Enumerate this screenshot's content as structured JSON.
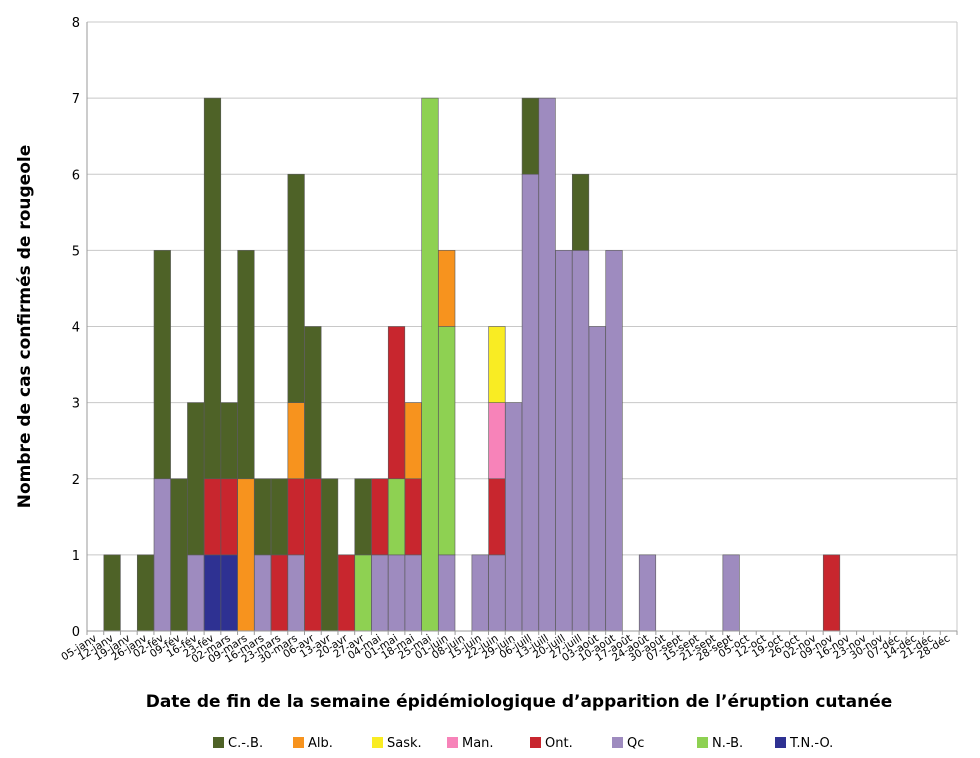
{
  "chart_data": {
    "type": "bar",
    "stacked": true,
    "xlabel": "Date de fin de la semaine épidémiologique d’apparition de l’éruption cutanée",
    "ylabel": "Nombre de cas confirmés de rougeole",
    "ylim": [
      0,
      8
    ],
    "yticks": [
      "0",
      "1",
      "2",
      "3",
      "4",
      "5",
      "6",
      "7",
      "8"
    ],
    "grid": true,
    "legend_position": "bottom",
    "categories": [
      "05-janv",
      "12-janv",
      "19-janv",
      "26-janv",
      "02-fév",
      "09-fév",
      "16-fév",
      "23-fév",
      "02-mars",
      "09-mars",
      "16-mars",
      "23-mars",
      "30-mars",
      "06-avr",
      "13-avr",
      "20-avr",
      "27-avr",
      "04-mai",
      "01-mai",
      "18-mai",
      "25-mai",
      "01-juin",
      "08-juin",
      "15-juin",
      "22-juin",
      "29-juin",
      "06-juill",
      "13-juill",
      "20-juill",
      "27-juill",
      "03-août",
      "10-août",
      "17-août",
      "24-août",
      "30-août",
      "07-sept",
      "15-sept",
      "21-sept",
      "28-sept",
      "05-oct",
      "12-oct",
      "19-oct",
      "26-oct",
      "02-nov",
      "09-nov",
      "16-nov",
      "23-nov",
      "30-nov",
      "07-déc",
      "14-déc",
      "21-déc",
      "28-déc"
    ],
    "series": [
      {
        "name": "T.N.-O.",
        "color": "#2e3192",
        "values": [
          0,
          0,
          0,
          0,
          0,
          0,
          0,
          1,
          1,
          0,
          0,
          0,
          0,
          0,
          0,
          0,
          0,
          0,
          0,
          0,
          0,
          0,
          0,
          0,
          0,
          0,
          0,
          0,
          0,
          0,
          0,
          0,
          0,
          0,
          0,
          0,
          0,
          0,
          0,
          0,
          0,
          0,
          0,
          0,
          0,
          0,
          0,
          0,
          0,
          0,
          0,
          0
        ]
      },
      {
        "name": "Qc",
        "color": "#9e8bbf",
        "values": [
          0,
          0,
          0,
          0,
          2,
          0,
          1,
          0,
          0,
          0,
          1,
          0,
          1,
          0,
          0,
          0,
          0,
          1,
          1,
          1,
          0,
          1,
          0,
          1,
          1,
          3,
          6,
          7,
          5,
          5,
          4,
          5,
          0,
          1,
          0,
          0,
          0,
          0,
          1,
          0,
          0,
          0,
          0,
          0,
          0,
          0,
          0,
          0,
          0,
          0,
          0,
          0
        ]
      },
      {
        "name": "N.-B.",
        "color": "#8ed152",
        "values": [
          0,
          0,
          0,
          0,
          0,
          0,
          0,
          0,
          0,
          0,
          0,
          0,
          0,
          0,
          0,
          0,
          1,
          0,
          1,
          0,
          7,
          3,
          0,
          0,
          0,
          0,
          0,
          0,
          0,
          0,
          0,
          0,
          0,
          0,
          0,
          0,
          0,
          0,
          0,
          0,
          0,
          0,
          0,
          0,
          0,
          0,
          0,
          0,
          0,
          0,
          0,
          0
        ]
      },
      {
        "name": "Ont.",
        "color": "#c8262e",
        "values": [
          0,
          0,
          0,
          0,
          0,
          0,
          0,
          1,
          1,
          0,
          0,
          1,
          1,
          2,
          0,
          1,
          0,
          1,
          2,
          1,
          0,
          0,
          0,
          0,
          1,
          0,
          0,
          0,
          0,
          0,
          0,
          0,
          0,
          0,
          0,
          0,
          0,
          0,
          0,
          0,
          0,
          0,
          0,
          0,
          1,
          0,
          0,
          0,
          0,
          0,
          0,
          0
        ]
      },
      {
        "name": "Man.",
        "color": "#f783b9",
        "values": [
          0,
          0,
          0,
          0,
          0,
          0,
          0,
          0,
          0,
          0,
          0,
          0,
          0,
          0,
          0,
          0,
          0,
          0,
          0,
          0,
          0,
          0,
          0,
          0,
          1,
          0,
          0,
          0,
          0,
          0,
          0,
          0,
          0,
          0,
          0,
          0,
          0,
          0,
          0,
          0,
          0,
          0,
          0,
          0,
          0,
          0,
          0,
          0,
          0,
          0,
          0,
          0
        ]
      },
      {
        "name": "Sask.",
        "color": "#f9ec23",
        "values": [
          0,
          0,
          0,
          0,
          0,
          0,
          0,
          0,
          0,
          0,
          0,
          0,
          0,
          0,
          0,
          0,
          0,
          0,
          0,
          0,
          0,
          0,
          0,
          0,
          1,
          0,
          0,
          0,
          0,
          0,
          0,
          0,
          0,
          0,
          0,
          0,
          0,
          0,
          0,
          0,
          0,
          0,
          0,
          0,
          0,
          0,
          0,
          0,
          0,
          0,
          0,
          0
        ]
      },
      {
        "name": "Alb.",
        "color": "#f7931e",
        "values": [
          0,
          0,
          0,
          0,
          0,
          0,
          0,
          0,
          0,
          2,
          0,
          0,
          1,
          0,
          0,
          0,
          0,
          0,
          0,
          1,
          0,
          1,
          0,
          0,
          0,
          0,
          0,
          0,
          0,
          0,
          0,
          0,
          0,
          0,
          0,
          0,
          0,
          0,
          0,
          0,
          0,
          0,
          0,
          0,
          0,
          0,
          0,
          0,
          0,
          0,
          0,
          0
        ]
      },
      {
        "name": "C.-.B.",
        "color": "#4e6227",
        "values": [
          0,
          1,
          0,
          1,
          3,
          2,
          2,
          5,
          1,
          3,
          1,
          1,
          3,
          2,
          2,
          0,
          1,
          0,
          0,
          0,
          0,
          0,
          0,
          0,
          0,
          0,
          1,
          0,
          0,
          1,
          0,
          0,
          0,
          0,
          0,
          0,
          0,
          0,
          0,
          0,
          0,
          0,
          0,
          0,
          0,
          0,
          0,
          0,
          0,
          0,
          0,
          0
        ]
      }
    ],
    "legend_order": [
      "C.-.B.",
      "Alb.",
      "Sask.",
      "Man.",
      "Ont.",
      "Qc",
      "N.-B.",
      "T.N.-O."
    ],
    "colors": {
      "grid": "#c8c8c8",
      "axis": "#9a9a9a",
      "bar_edge": "#5a5a5a"
    }
  }
}
